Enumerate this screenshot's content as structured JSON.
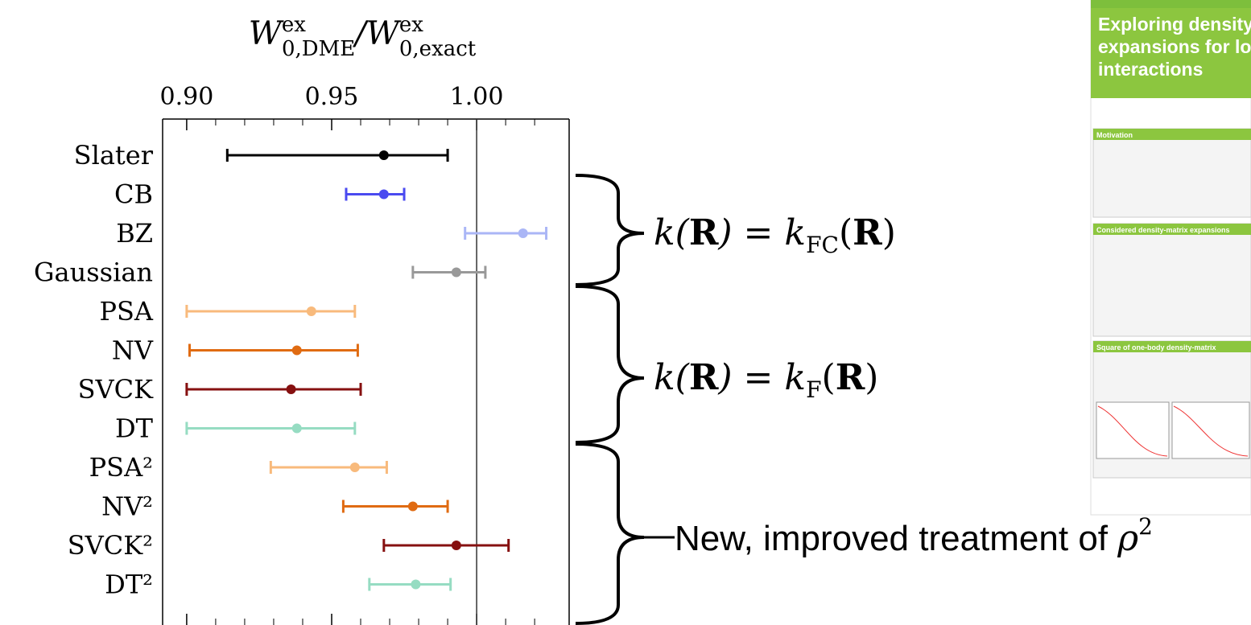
{
  "chart_data": {
    "type": "errorbar",
    "title": {
      "base": "W",
      "sup": "ex",
      "sub": "0,DME",
      "sep": "/",
      "base2": "W",
      "sup2": "ex",
      "sub2": "0,exact"
    },
    "categories": [
      "Slater",
      "CB",
      "BZ",
      "Gaussian",
      "PSA",
      "NV",
      "SVCK",
      "DT",
      "PSA²",
      "NV²",
      "SVCK²",
      "DT²"
    ],
    "values": [
      0.968,
      0.968,
      1.016,
      0.993,
      0.943,
      0.938,
      0.936,
      0.938,
      0.958,
      0.978,
      0.993,
      0.979
    ],
    "lower": [
      0.914,
      0.955,
      0.996,
      0.978,
      0.9,
      0.901,
      0.9,
      0.9,
      0.929,
      0.954,
      0.968,
      0.963
    ],
    "upper": [
      0.99,
      0.975,
      1.024,
      1.003,
      0.958,
      0.959,
      0.96,
      0.958,
      0.969,
      0.99,
      1.011,
      0.991
    ],
    "colors": [
      "#000000",
      "#4a4af0",
      "#aab6f6",
      "#999999",
      "#f8ba7c",
      "#e06b12",
      "#861010",
      "#96dcc2",
      "#f8ba7c",
      "#e06b12",
      "#861010",
      "#96dcc2"
    ],
    "xlim": [
      0.8917,
      1.0319
    ],
    "xticks": [
      {
        "value": 0.9,
        "label": "0.90"
      },
      {
        "value": 0.95,
        "label": "0.95"
      },
      {
        "value": 1.0,
        "label": "1.00"
      }
    ],
    "xminorticks": [
      0.91,
      0.92,
      0.93,
      0.94,
      0.96,
      0.97,
      0.98,
      0.99,
      1.01,
      1.02
    ],
    "reference_line": 1.0,
    "annotations": [
      {
        "lhs": "k(",
        "bold": "R",
        "mid": ") = k",
        "sub": "FC",
        "open": "(",
        "bold2": "R",
        "close": ")"
      },
      {
        "lhs": "k(",
        "bold": "R",
        "mid": ") = k",
        "sub": "F",
        "open": "(",
        "bold2": "R",
        "close": ")"
      },
      {
        "text": "New, improved treatment of ",
        "symbol": "ρ",
        "sup": "2"
      }
    ]
  },
  "poster": {
    "title": [
      "Exploring density",
      "expansions for lo",
      "interactions"
    ],
    "sections": [
      "Motivation",
      "Considered density-matrix expansions",
      "Square of one-body density-matrix"
    ]
  }
}
